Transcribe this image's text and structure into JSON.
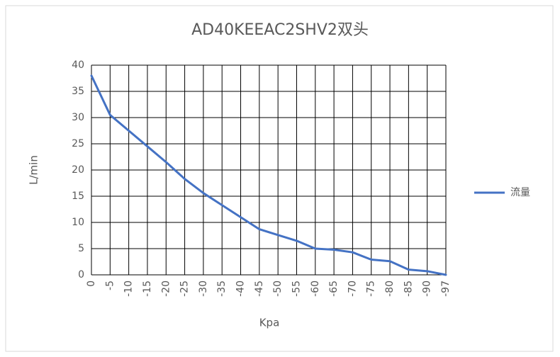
{
  "chart_data": {
    "type": "line",
    "title": "AD40KEEAC2SHV2双头",
    "x_label": "Kpa",
    "y_label": "L/min",
    "categories": [
      "0",
      "-5",
      "-10",
      "-15",
      "-20",
      "-25",
      "-30",
      "-35",
      "-40",
      "-45",
      "-50",
      "-55",
      "-60",
      "-65",
      "-70",
      "-75",
      "-80",
      "-85",
      "-90",
      "-97"
    ],
    "series": [
      {
        "name": "流量",
        "color": "#4472c4",
        "values": [
          38,
          30.5,
          27.5,
          24.5,
          21.5,
          18.3,
          15.6,
          13.3,
          11,
          8.7,
          7.6,
          6.5,
          5,
          4.8,
          4.3,
          2.9,
          2.6,
          1,
          0.7,
          0
        ]
      }
    ],
    "ylim": [
      0,
      40
    ],
    "yticks": [
      0,
      5,
      10,
      15,
      20,
      25,
      30,
      35,
      40
    ],
    "grid": true,
    "legend": "right"
  }
}
